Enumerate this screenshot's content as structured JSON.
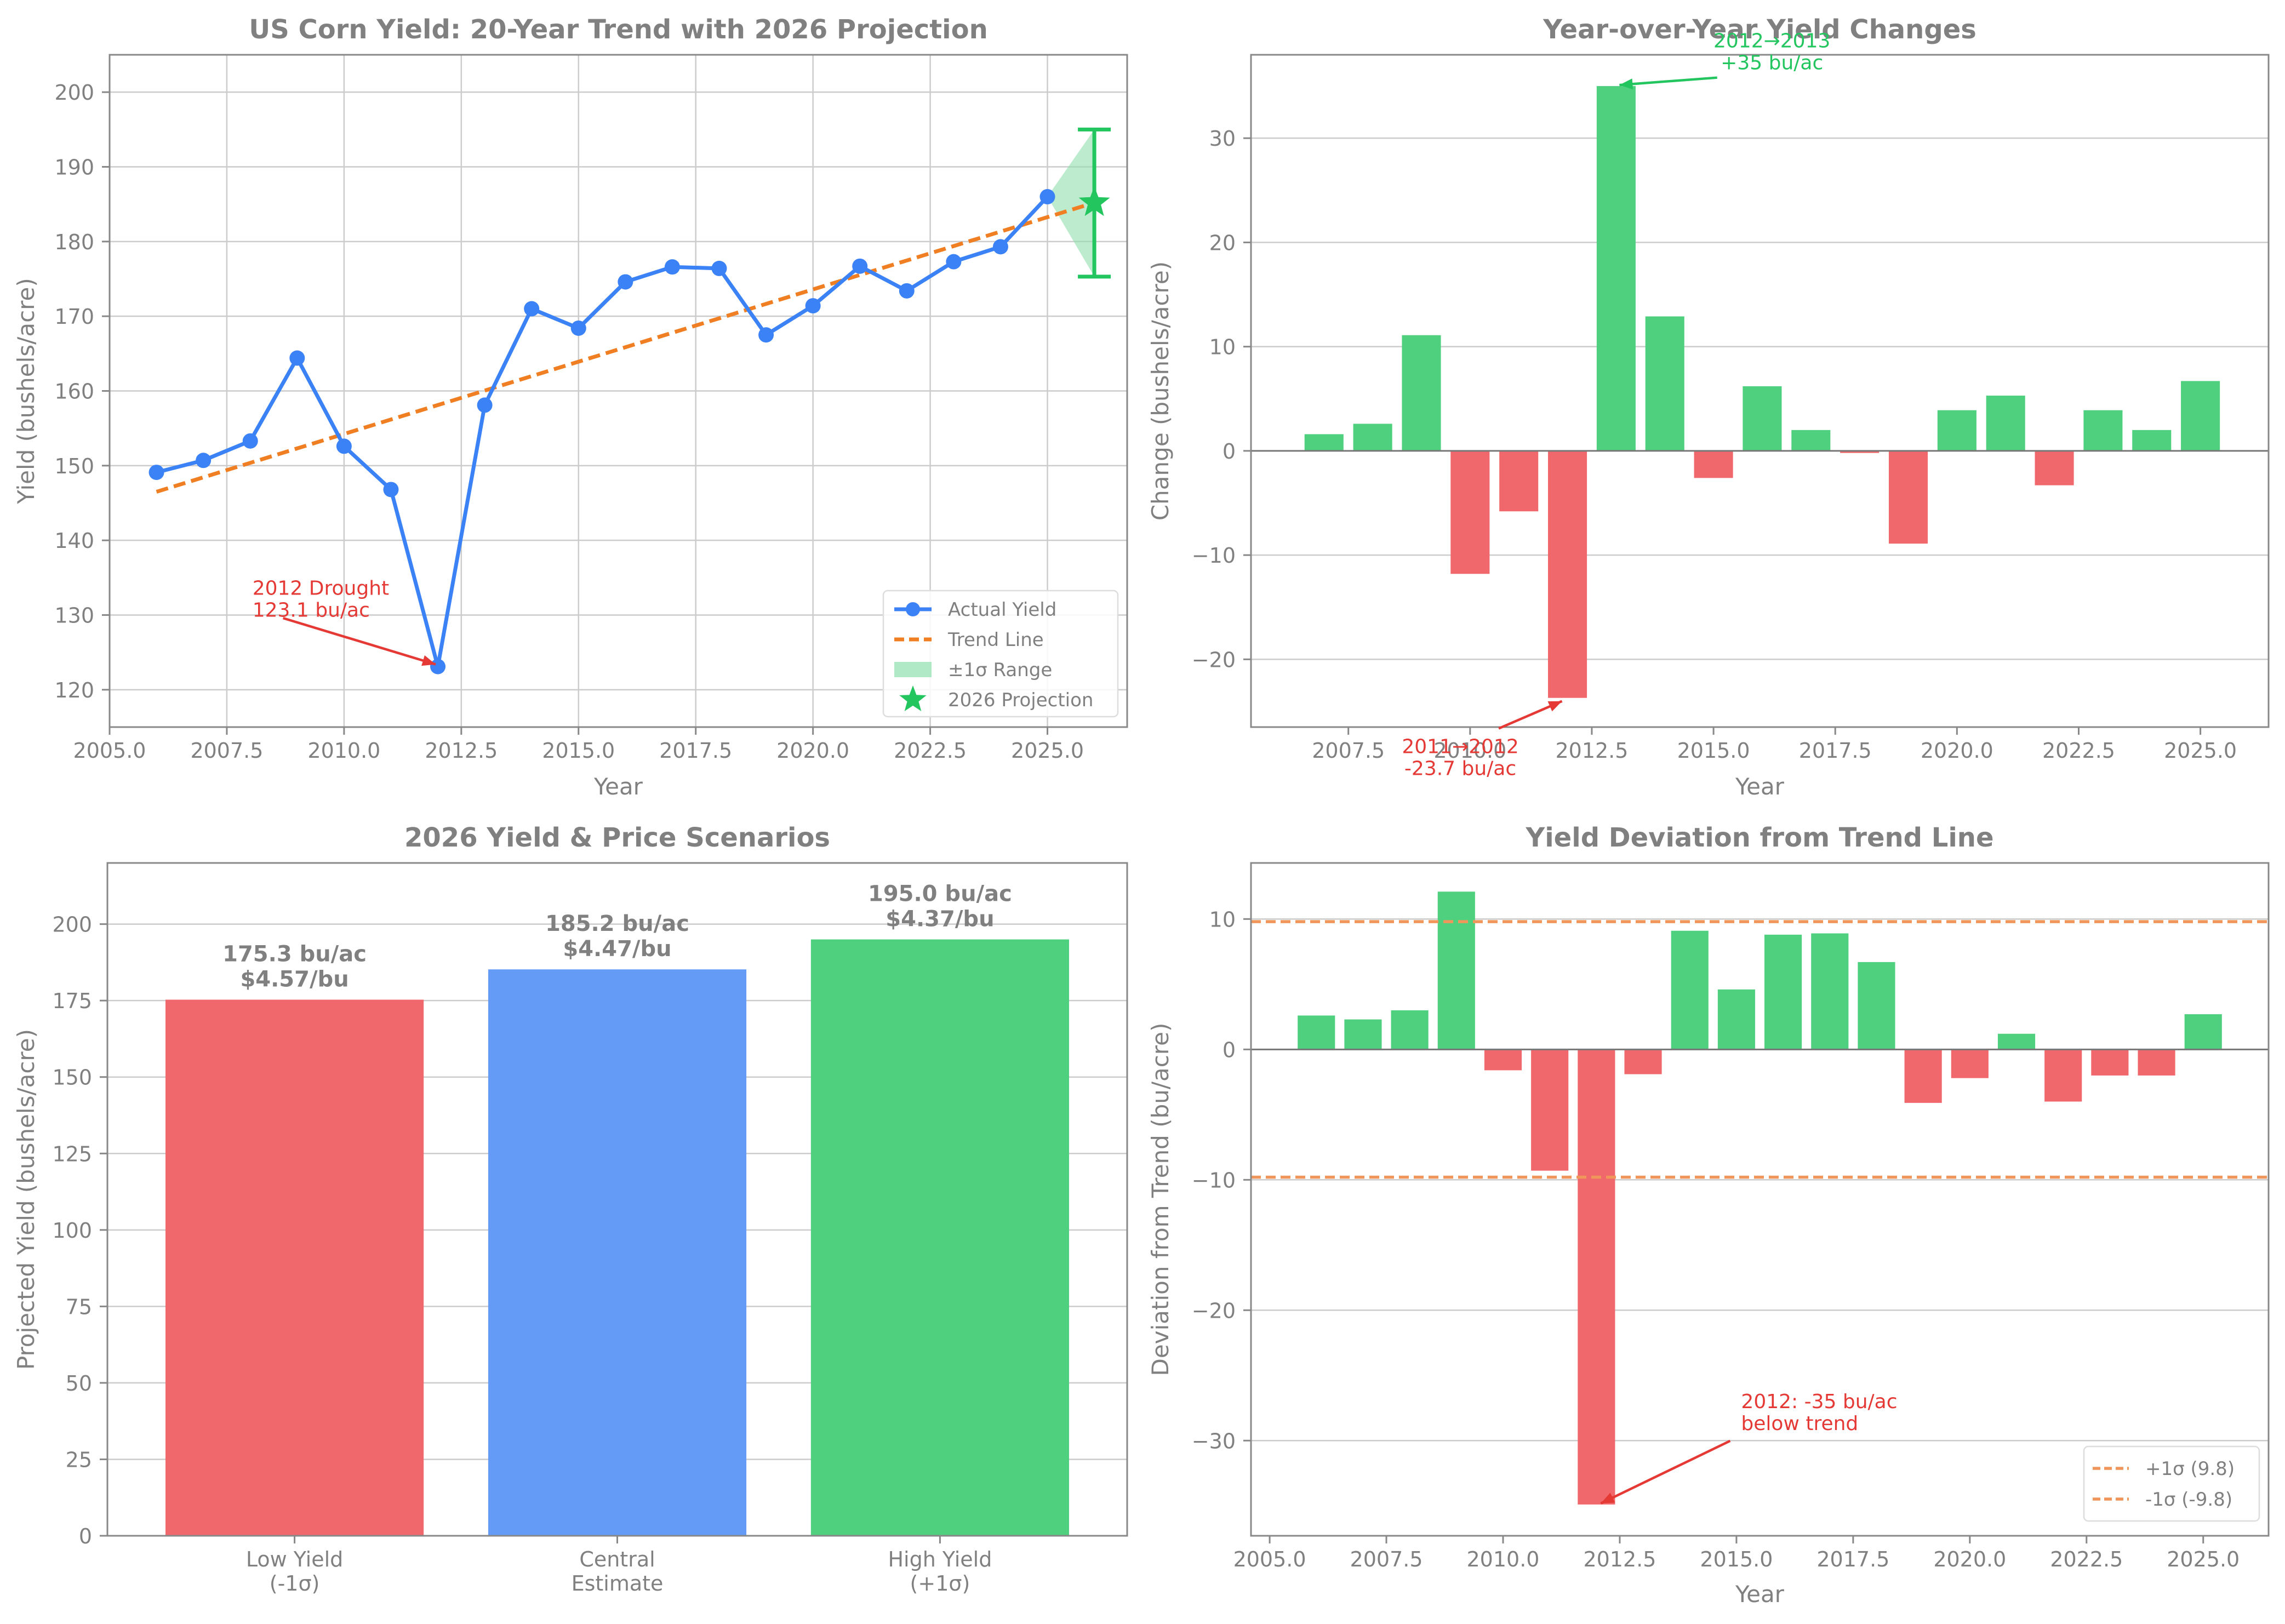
{
  "colors": {
    "blue": "#3b82f6",
    "blue_bar": "#639bf7",
    "orange": "#f07e22",
    "orange_ref": "#f0965a",
    "green": "#22c55e",
    "green_bar": "#4fd07f",
    "green_fill": "#8fe0ac",
    "red": "#e53935",
    "red_bar": "#f0686b",
    "grid": "#cccccc",
    "axis": "#888888",
    "text": "#808080"
  },
  "chart_data": [
    {
      "type": "line",
      "title": "US Corn Yield: 20-Year Trend with 2026 Projection",
      "xlabel": "Year",
      "ylabel": "Yield (bushels/acre)",
      "xlim": [
        2005,
        2026.7
      ],
      "ylim": [
        115,
        205
      ],
      "xticks": [
        2005.0,
        2007.5,
        2010.0,
        2012.5,
        2015.0,
        2017.5,
        2020.0,
        2022.5,
        2025.0
      ],
      "xtick_labels": [
        "2005.0",
        "2007.5",
        "2010.0",
        "2012.5",
        "2015.0",
        "2017.5",
        "2020.0",
        "2022.5",
        "2025.0"
      ],
      "yticks": [
        120,
        130,
        140,
        150,
        160,
        170,
        180,
        190,
        200
      ],
      "ytick_labels": [
        "120",
        "130",
        "140",
        "150",
        "160",
        "170",
        "180",
        "190",
        "200"
      ],
      "grid": true,
      "series": [
        {
          "name": "Actual Yield",
          "x": [
            2006,
            2007,
            2008,
            2009,
            2010,
            2011,
            2012,
            2013,
            2014,
            2015,
            2016,
            2017,
            2018,
            2019,
            2020,
            2021,
            2022,
            2023,
            2024,
            2025
          ],
          "values": [
            149.1,
            150.7,
            153.3,
            164.4,
            152.6,
            146.8,
            123.1,
            158.1,
            171.0,
            168.4,
            174.6,
            176.6,
            176.4,
            167.5,
            171.4,
            176.7,
            173.4,
            177.3,
            179.3,
            186.0
          ]
        },
        {
          "name": "Trend Line",
          "x": [
            2006,
            2026
          ],
          "values": [
            146.5,
            185.2
          ]
        }
      ],
      "range_band": {
        "name": "±1σ Range",
        "x": [
          2025,
          2026
        ],
        "low": [
          186.0,
          175.3
        ],
        "high": [
          186.0,
          195.0
        ]
      },
      "projection": {
        "name": "2026 Projection",
        "x": 2026,
        "value": 185.2,
        "err_low": 175.3,
        "err_high": 195.0
      },
      "legend": {
        "position": "lower-right",
        "entries": [
          "Actual Yield",
          "Trend Line",
          "±1σ Range",
          "2026 Projection"
        ]
      },
      "annotation": {
        "line1": "2012 Drought",
        "line2": "123.1 bu/ac",
        "x": 2012,
        "y": 123.1,
        "text_x": 2008.0,
        "text_y": 132.7
      }
    },
    {
      "type": "bar",
      "title": "Year-over-Year Yield Changes",
      "xlabel": "Year",
      "ylabel": "Change (bushels/acre)",
      "xlim": [
        2005.5,
        2026.4
      ],
      "ylim": [
        -26.5,
        38
      ],
      "xticks": [
        2007.5,
        2010.0,
        2012.5,
        2015.0,
        2017.5,
        2020.0,
        2022.5,
        2025.0
      ],
      "xtick_labels": [
        "2007.5",
        "2010.0",
        "2012.5",
        "2015.0",
        "2017.5",
        "2020.0",
        "2022.5",
        "2025.0"
      ],
      "yticks": [
        -20,
        -10,
        0,
        10,
        20,
        30
      ],
      "ytick_labels": [
        "−20",
        "−10",
        "0",
        "10",
        "20",
        "30"
      ],
      "grid": true,
      "x": [
        2007,
        2008,
        2009,
        2010,
        2011,
        2012,
        2013,
        2014,
        2015,
        2016,
        2017,
        2018,
        2019,
        2020,
        2021,
        2022,
        2023,
        2024,
        2025
      ],
      "values": [
        1.6,
        2.6,
        11.1,
        -11.8,
        -5.8,
        -23.7,
        35.0,
        12.9,
        -2.6,
        6.2,
        2.0,
        -0.2,
        -8.9,
        3.9,
        5.3,
        -3.3,
        3.9,
        2.0,
        6.7
      ],
      "annotations": [
        {
          "line1": "2012→2013",
          "line2": "+35 bu/ac",
          "x": 2013,
          "y": 35.0,
          "text_x": 2016.2,
          "text_y": 38.7,
          "color": "green"
        },
        {
          "line1": "2011→2012",
          "line2": "-23.7 bu/ac",
          "x": 2012,
          "y": -23.7,
          "text_x": 2009.8,
          "text_y": -29.0,
          "color": "red"
        }
      ]
    },
    {
      "type": "bar",
      "title": "2026 Yield & Price Scenarios",
      "xlabel": "",
      "ylabel": "Projected Yield (bushels/acre)",
      "ylim": [
        0,
        220
      ],
      "yticks": [
        0,
        25,
        50,
        75,
        100,
        125,
        150,
        175,
        200
      ],
      "ytick_labels": [
        "0",
        "25",
        "50",
        "75",
        "100",
        "125",
        "150",
        "175",
        "200"
      ],
      "grid": true,
      "categories": [
        "Low Yield",
        "Central",
        "High Yield"
      ],
      "category_sublabels": [
        "(-1σ)",
        "Estimate",
        "(+1σ)"
      ],
      "values": [
        175.3,
        185.2,
        195.0
      ],
      "bar_label_yield": [
        "175.3 bu/ac",
        "185.2 bu/ac",
        "195.0 bu/ac"
      ],
      "bar_label_price": [
        "$4.57/bu",
        "$4.47/bu",
        "$4.37/bu"
      ]
    },
    {
      "type": "bar",
      "title": "Yield Deviation from Trend Line",
      "xlabel": "Year",
      "ylabel": "Deviation from Trend (bu/acre)",
      "xlim": [
        2004.6,
        2026.4
      ],
      "ylim": [
        -37.3,
        14.3
      ],
      "xticks": [
        2005.0,
        2007.5,
        2010.0,
        2012.5,
        2015.0,
        2017.5,
        2020.0,
        2022.5,
        2025.0
      ],
      "xtick_labels": [
        "2005.0",
        "2007.5",
        "2010.0",
        "2012.5",
        "2015.0",
        "2017.5",
        "2020.0",
        "2022.5",
        "2025.0"
      ],
      "yticks": [
        -30,
        -20,
        -10,
        0,
        10
      ],
      "ytick_labels": [
        "−30",
        "−20",
        "−10",
        "0",
        "10"
      ],
      "grid": true,
      "x": [
        2006,
        2007,
        2008,
        2009,
        2010,
        2011,
        2012,
        2013,
        2014,
        2015,
        2016,
        2017,
        2018,
        2019,
        2020,
        2021,
        2022,
        2023,
        2024,
        2025
      ],
      "values": [
        2.6,
        2.3,
        3.0,
        12.1,
        -1.6,
        -9.3,
        -34.9,
        -1.9,
        9.1,
        4.6,
        8.8,
        8.9,
        6.7,
        -4.1,
        -2.2,
        1.2,
        -4.0,
        -2.0,
        -2.0,
        2.7
      ],
      "ref_lines": [
        {
          "name": "+1σ (9.8)",
          "value": 9.8
        },
        {
          "name": "-1σ (-9.8)",
          "value": -9.8
        }
      ],
      "legend": {
        "position": "lower-right",
        "entries": [
          "+1σ (9.8)",
          "-1σ (-9.8)"
        ]
      },
      "annotation": {
        "line1": "2012: -35 bu/ac",
        "line2": "below trend",
        "x": 2012,
        "y": -34.9,
        "text_x": 2015.1,
        "text_y": -27.5
      }
    }
  ]
}
